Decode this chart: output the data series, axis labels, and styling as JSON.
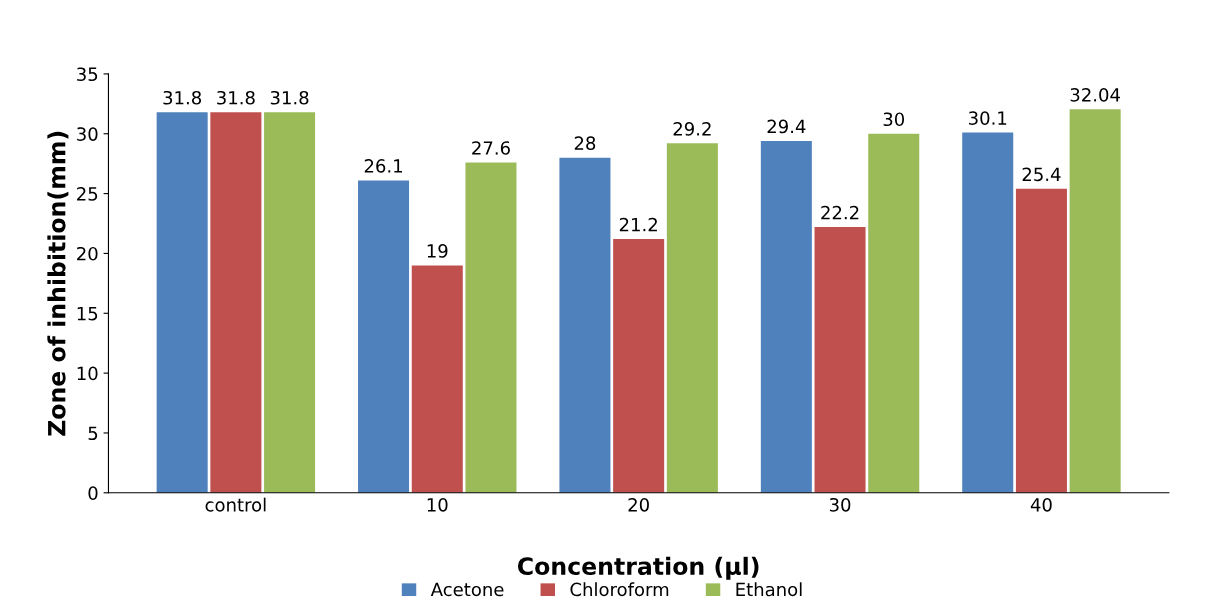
{
  "chart_data": {
    "type": "bar",
    "xlabel": "Concentration (µl)",
    "ylabel": "Zone of inhibition(mm)",
    "categories": [
      "control",
      "10",
      "20",
      "30",
      "40"
    ],
    "series": [
      {
        "name": "Acetone",
        "color": "#4f81bd",
        "values": [
          31.8,
          26.1,
          28,
          29.4,
          30.1
        ]
      },
      {
        "name": "Chloroform",
        "color": "#c0504d",
        "values": [
          31.8,
          19,
          21.2,
          22.2,
          25.4
        ]
      },
      {
        "name": "Ethanol",
        "color": "#9bbb59",
        "values": [
          31.8,
          27.6,
          29.2,
          30,
          32.04
        ]
      }
    ],
    "ylim": [
      0,
      35
    ],
    "yticks": [
      0,
      5,
      10,
      15,
      20,
      25,
      30,
      35
    ],
    "grid": false,
    "legend": "bottom",
    "data_labels": true
  }
}
